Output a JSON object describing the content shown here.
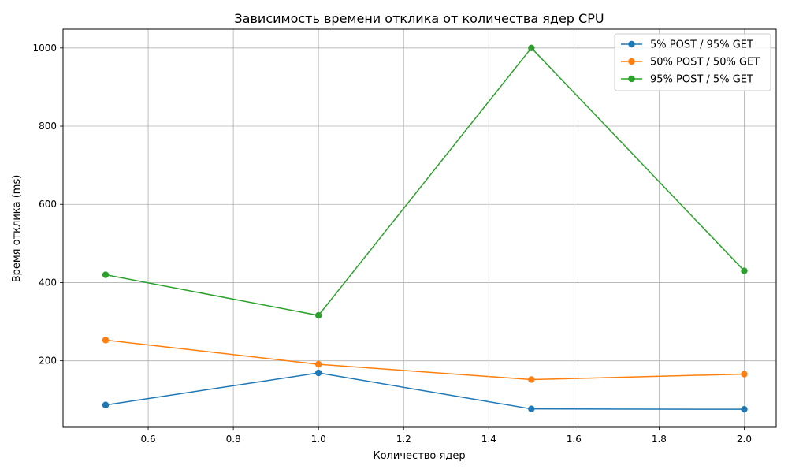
{
  "chart_data": {
    "type": "line",
    "title": "Зависимость времени отклика от количества ядер CPU",
    "xlabel": "Количество ядер",
    "ylabel": "Время отклика (ms)",
    "xlim": [
      0.4,
      2.075
    ],
    "ylim": [
      30,
      1048
    ],
    "x_ticks": [
      0.6,
      0.8,
      1.0,
      1.2,
      1.4,
      1.6,
      1.8,
      2.0
    ],
    "x_tick_labels": [
      "0.6",
      "0.8",
      "1.0",
      "1.2",
      "1.4",
      "1.6",
      "1.8",
      "2.0"
    ],
    "y_ticks": [
      200,
      400,
      600,
      800,
      1000
    ],
    "y_tick_labels": [
      "200",
      "400",
      "600",
      "800",
      "1000"
    ],
    "grid": true,
    "legend_position": "top-right",
    "x": [
      0.5,
      1.0,
      1.5,
      2.0
    ],
    "series": [
      {
        "name": "5% POST / 95% GET",
        "color": "#1f77b4",
        "values": [
          87,
          169,
          77,
          76
        ]
      },
      {
        "name": "50% POST / 50% GET",
        "color": "#ff7f0e",
        "values": [
          253,
          191,
          152,
          166
        ]
      },
      {
        "name": "95% POST / 5% GET",
        "color": "#2ca02c",
        "values": [
          420,
          316,
          1000,
          430
        ]
      }
    ]
  }
}
